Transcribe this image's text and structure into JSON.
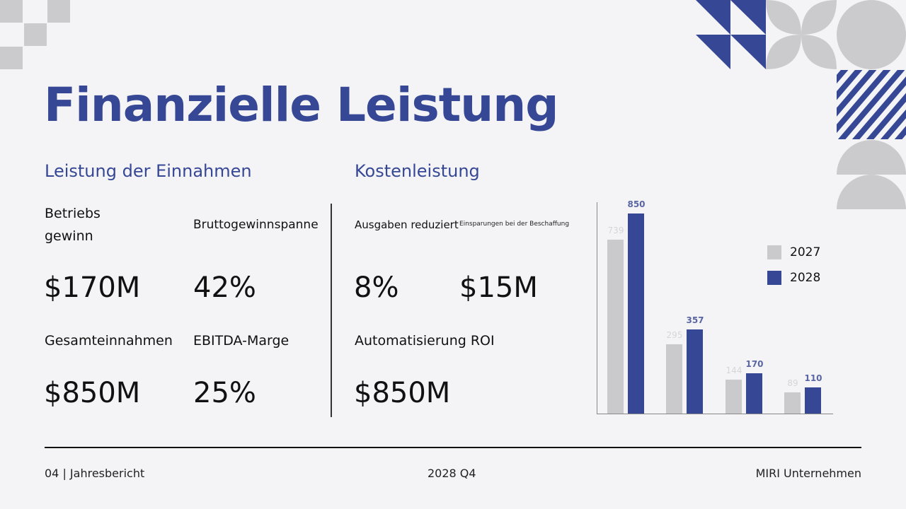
{
  "slide": {
    "title": "Finanzielle Leistung",
    "sections": {
      "revenue": {
        "heading": "Leistung der Einnahmen",
        "metrics": [
          {
            "label_line1": "Betriebs",
            "label_line2": "gewinn",
            "value": "$170M"
          },
          {
            "label": "Bruttogewinnspanne",
            "value": "42%"
          },
          {
            "label": "Gesamteinnahmen",
            "value": "$850M"
          },
          {
            "label": "EBITDA-Marge",
            "value": "25%"
          }
        ]
      },
      "cost": {
        "heading": "Kostenleistung",
        "metrics": [
          {
            "label": "Ausgaben reduziert",
            "value": "8%"
          },
          {
            "label": "Einsparungen bei der Beschaffung",
            "value": "$15M"
          },
          {
            "label": "Automatisierung ROI",
            "value": "$850M"
          }
        ]
      }
    },
    "footer": {
      "left": "04 | Jahresbericht",
      "center": "2028 Q4",
      "right": "MIRI Unternehmen"
    },
    "colors": {
      "accent": "#364795",
      "gray": "#cacacc",
      "background": "#f4f4f6"
    }
  },
  "chart_data": {
    "type": "bar",
    "title": "",
    "xlabel": "",
    "ylabel": "",
    "categories": [
      "",
      "",
      "",
      ""
    ],
    "series": [
      {
        "name": "2027",
        "color": "#cacacc",
        "values": [
          739,
          295,
          144,
          89
        ]
      },
      {
        "name": "2028",
        "color": "#364795",
        "values": [
          850,
          357,
          170,
          110
        ]
      }
    ],
    "ylim": [
      0,
      900
    ],
    "grid": false,
    "legend_position": "right",
    "data_labels": true
  }
}
